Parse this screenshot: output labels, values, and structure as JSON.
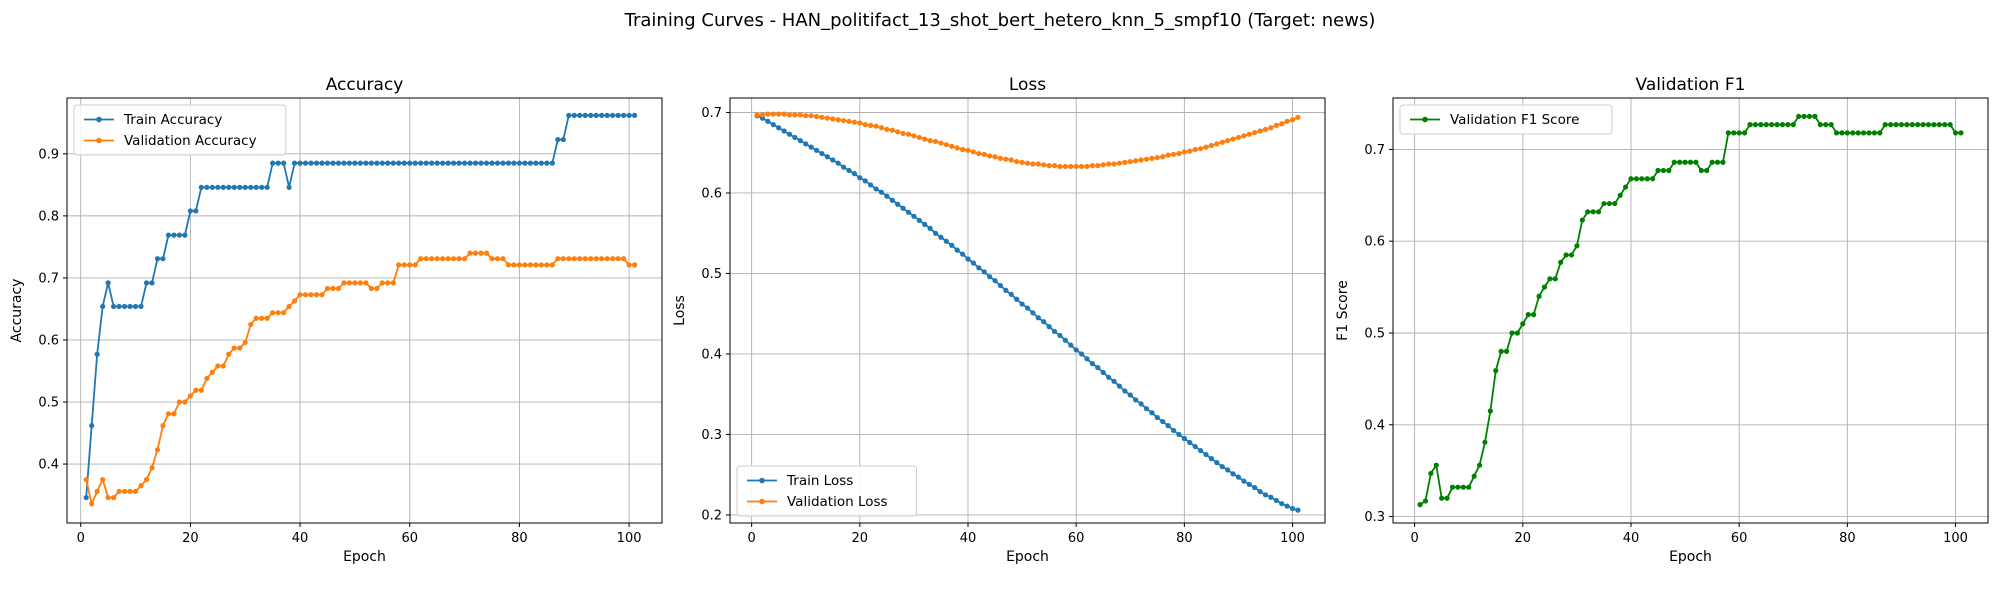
{
  "figure": {
    "suptitle": "Training Curves - HAN_politifact_13_shot_bert_hetero_knn_5_smpf10 (Target: news)"
  },
  "colors": {
    "blue": "#1f77b4",
    "orange": "#ff7f0e",
    "green": "#008000",
    "grid": "#b0b0b0"
  },
  "chart_data": [
    {
      "type": "line",
      "title": "Accuracy",
      "xlabel": "Epoch",
      "ylabel": "Accuracy",
      "xlim": [
        -2.5,
        106
      ],
      "ylim": [
        0.305,
        0.99
      ],
      "xticks": [
        0,
        20,
        40,
        60,
        80,
        100
      ],
      "yticks": [
        0.4,
        0.5,
        0.6,
        0.7,
        0.8,
        0.9
      ],
      "ytick_decimals": 1,
      "grid": true,
      "legend": "upper-left",
      "series": [
        {
          "name": "Train Accuracy",
          "color": "#1f77b4",
          "x0": 1,
          "values": [
            0.346,
            0.462,
            0.577,
            0.654,
            0.692,
            0.654,
            0.654,
            0.654,
            0.654,
            0.654,
            0.654,
            0.692,
            0.692,
            0.731,
            0.731,
            0.769,
            0.769,
            0.769,
            0.769,
            0.808,
            0.808,
            0.846,
            0.846,
            0.846,
            0.846,
            0.846,
            0.846,
            0.846,
            0.846,
            0.846,
            0.846,
            0.846,
            0.846,
            0.846,
            0.885,
            0.885,
            0.885,
            0.846,
            0.885,
            0.885,
            0.885,
            0.885,
            0.885,
            0.885,
            0.885,
            0.885,
            0.885,
            0.885,
            0.885,
            0.885,
            0.885,
            0.885,
            0.885,
            0.885,
            0.885,
            0.885,
            0.885,
            0.885,
            0.885,
            0.885,
            0.885,
            0.885,
            0.885,
            0.885,
            0.885,
            0.885,
            0.885,
            0.885,
            0.885,
            0.885,
            0.885,
            0.885,
            0.885,
            0.885,
            0.885,
            0.885,
            0.885,
            0.885,
            0.885,
            0.885,
            0.885,
            0.885,
            0.885,
            0.885,
            0.885,
            0.885,
            0.923,
            0.923,
            0.962,
            0.962,
            0.962,
            0.962,
            0.962,
            0.962,
            0.962,
            0.962,
            0.962,
            0.962,
            0.962,
            0.962,
            0.962
          ]
        },
        {
          "name": "Validation Accuracy",
          "color": "#ff7f0e",
          "x0": 1,
          "values": [
            0.375,
            0.336,
            0.356,
            0.375,
            0.346,
            0.346,
            0.356,
            0.356,
            0.356,
            0.356,
            0.365,
            0.375,
            0.394,
            0.423,
            0.462,
            0.481,
            0.481,
            0.5,
            0.5,
            0.51,
            0.519,
            0.519,
            0.538,
            0.548,
            0.558,
            0.558,
            0.577,
            0.587,
            0.587,
            0.596,
            0.625,
            0.635,
            0.635,
            0.635,
            0.644,
            0.644,
            0.644,
            0.654,
            0.663,
            0.673,
            0.673,
            0.673,
            0.673,
            0.673,
            0.683,
            0.683,
            0.683,
            0.692,
            0.692,
            0.692,
            0.692,
            0.692,
            0.683,
            0.683,
            0.692,
            0.692,
            0.692,
            0.721,
            0.721,
            0.721,
            0.721,
            0.731,
            0.731,
            0.731,
            0.731,
            0.731,
            0.731,
            0.731,
            0.731,
            0.731,
            0.74,
            0.74,
            0.74,
            0.74,
            0.731,
            0.731,
            0.731,
            0.721,
            0.721,
            0.721,
            0.721,
            0.721,
            0.721,
            0.721,
            0.721,
            0.721,
            0.731,
            0.731,
            0.731,
            0.731,
            0.731,
            0.731,
            0.731,
            0.731,
            0.731,
            0.731,
            0.731,
            0.731,
            0.731,
            0.721,
            0.721
          ]
        }
      ]
    },
    {
      "type": "line",
      "title": "Loss",
      "xlabel": "Epoch",
      "ylabel": "Loss",
      "xlim": [
        -4,
        106
      ],
      "ylim": [
        0.19,
        0.718
      ],
      "xticks": [
        0,
        20,
        40,
        60,
        80,
        100
      ],
      "yticks": [
        0.2,
        0.3,
        0.4,
        0.5,
        0.6,
        0.7
      ],
      "ytick_decimals": 1,
      "grid": true,
      "legend": "lower-left",
      "series": [
        {
          "name": "Train Loss",
          "color": "#1f77b4",
          "x0": 1,
          "values": [
            0.696,
            0.693,
            0.689,
            0.685,
            0.681,
            0.677,
            0.673,
            0.669,
            0.665,
            0.661,
            0.657,
            0.653,
            0.649,
            0.645,
            0.641,
            0.637,
            0.632,
            0.628,
            0.624,
            0.619,
            0.615,
            0.61,
            0.605,
            0.601,
            0.596,
            0.591,
            0.586,
            0.581,
            0.576,
            0.571,
            0.566,
            0.561,
            0.556,
            0.55,
            0.545,
            0.54,
            0.535,
            0.529,
            0.524,
            0.518,
            0.513,
            0.507,
            0.502,
            0.496,
            0.491,
            0.485,
            0.479,
            0.474,
            0.468,
            0.462,
            0.457,
            0.451,
            0.445,
            0.44,
            0.434,
            0.428,
            0.423,
            0.417,
            0.411,
            0.405,
            0.4,
            0.394,
            0.388,
            0.383,
            0.377,
            0.371,
            0.366,
            0.36,
            0.354,
            0.349,
            0.343,
            0.338,
            0.332,
            0.327,
            0.321,
            0.316,
            0.311,
            0.305,
            0.3,
            0.295,
            0.29,
            0.285,
            0.28,
            0.275,
            0.27,
            0.265,
            0.26,
            0.256,
            0.251,
            0.247,
            0.242,
            0.238,
            0.234,
            0.229,
            0.225,
            0.222,
            0.218,
            0.214,
            0.211,
            0.208,
            0.206
          ]
        },
        {
          "name": "Validation Loss",
          "color": "#ff7f0e",
          "x0": 1,
          "values": [
            0.697,
            0.697,
            0.698,
            0.698,
            0.698,
            0.698,
            0.697,
            0.697,
            0.697,
            0.696,
            0.696,
            0.695,
            0.694,
            0.693,
            0.692,
            0.691,
            0.69,
            0.689,
            0.688,
            0.687,
            0.685,
            0.684,
            0.683,
            0.681,
            0.679,
            0.678,
            0.676,
            0.674,
            0.673,
            0.671,
            0.669,
            0.667,
            0.665,
            0.664,
            0.662,
            0.66,
            0.658,
            0.656,
            0.654,
            0.653,
            0.651,
            0.649,
            0.648,
            0.646,
            0.645,
            0.643,
            0.642,
            0.641,
            0.639,
            0.638,
            0.637,
            0.636,
            0.636,
            0.635,
            0.634,
            0.634,
            0.633,
            0.633,
            0.633,
            0.633,
            0.633,
            0.633,
            0.634,
            0.634,
            0.635,
            0.636,
            0.636,
            0.637,
            0.638,
            0.639,
            0.64,
            0.641,
            0.642,
            0.643,
            0.644,
            0.645,
            0.647,
            0.648,
            0.649,
            0.651,
            0.652,
            0.654,
            0.655,
            0.657,
            0.659,
            0.661,
            0.663,
            0.665,
            0.667,
            0.669,
            0.671,
            0.673,
            0.675,
            0.677,
            0.679,
            0.681,
            0.684,
            0.686,
            0.689,
            0.691,
            0.694
          ]
        }
      ]
    },
    {
      "type": "line",
      "title": "Validation F1",
      "xlabel": "Epoch",
      "ylabel": "F1 Score",
      "xlim": [
        -4,
        106
      ],
      "ylim": [
        0.293,
        0.756
      ],
      "xticks": [
        0,
        20,
        40,
        60,
        80,
        100
      ],
      "yticks": [
        0.3,
        0.4,
        0.5,
        0.6,
        0.7
      ],
      "ytick_decimals": 1,
      "grid": true,
      "legend": "upper-left",
      "series": [
        {
          "name": "Validation F1 Score",
          "color": "#008000",
          "x0": 1,
          "values": [
            0.313,
            0.317,
            0.347,
            0.356,
            0.32,
            0.32,
            0.332,
            0.332,
            0.332,
            0.332,
            0.344,
            0.356,
            0.381,
            0.415,
            0.459,
            0.48,
            0.48,
            0.5,
            0.5,
            0.51,
            0.52,
            0.52,
            0.54,
            0.55,
            0.559,
            0.559,
            0.577,
            0.585,
            0.585,
            0.595,
            0.623,
            0.632,
            0.632,
            0.632,
            0.641,
            0.641,
            0.641,
            0.65,
            0.659,
            0.668,
            0.668,
            0.668,
            0.668,
            0.668,
            0.677,
            0.677,
            0.677,
            0.686,
            0.686,
            0.686,
            0.686,
            0.686,
            0.677,
            0.677,
            0.686,
            0.686,
            0.686,
            0.718,
            0.718,
            0.718,
            0.718,
            0.727,
            0.727,
            0.727,
            0.727,
            0.727,
            0.727,
            0.727,
            0.727,
            0.727,
            0.736,
            0.736,
            0.736,
            0.736,
            0.727,
            0.727,
            0.727,
            0.718,
            0.718,
            0.718,
            0.718,
            0.718,
            0.718,
            0.718,
            0.718,
            0.718,
            0.727,
            0.727,
            0.727,
            0.727,
            0.727,
            0.727,
            0.727,
            0.727,
            0.727,
            0.727,
            0.727,
            0.727,
            0.727,
            0.718,
            0.718
          ]
        }
      ]
    }
  ]
}
